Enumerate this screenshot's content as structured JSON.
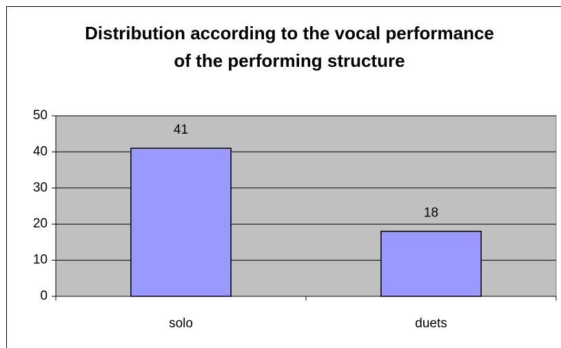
{
  "chart_data": {
    "type": "bar",
    "title": "Distribution according to the vocal performance of the performing structure",
    "categories": [
      "solo",
      "duets"
    ],
    "values": [
      41,
      18
    ],
    "color": "#9999ff",
    "ylim": [
      0,
      50
    ],
    "yticks": [
      0,
      10,
      20,
      30,
      40,
      50
    ],
    "grid": true
  }
}
